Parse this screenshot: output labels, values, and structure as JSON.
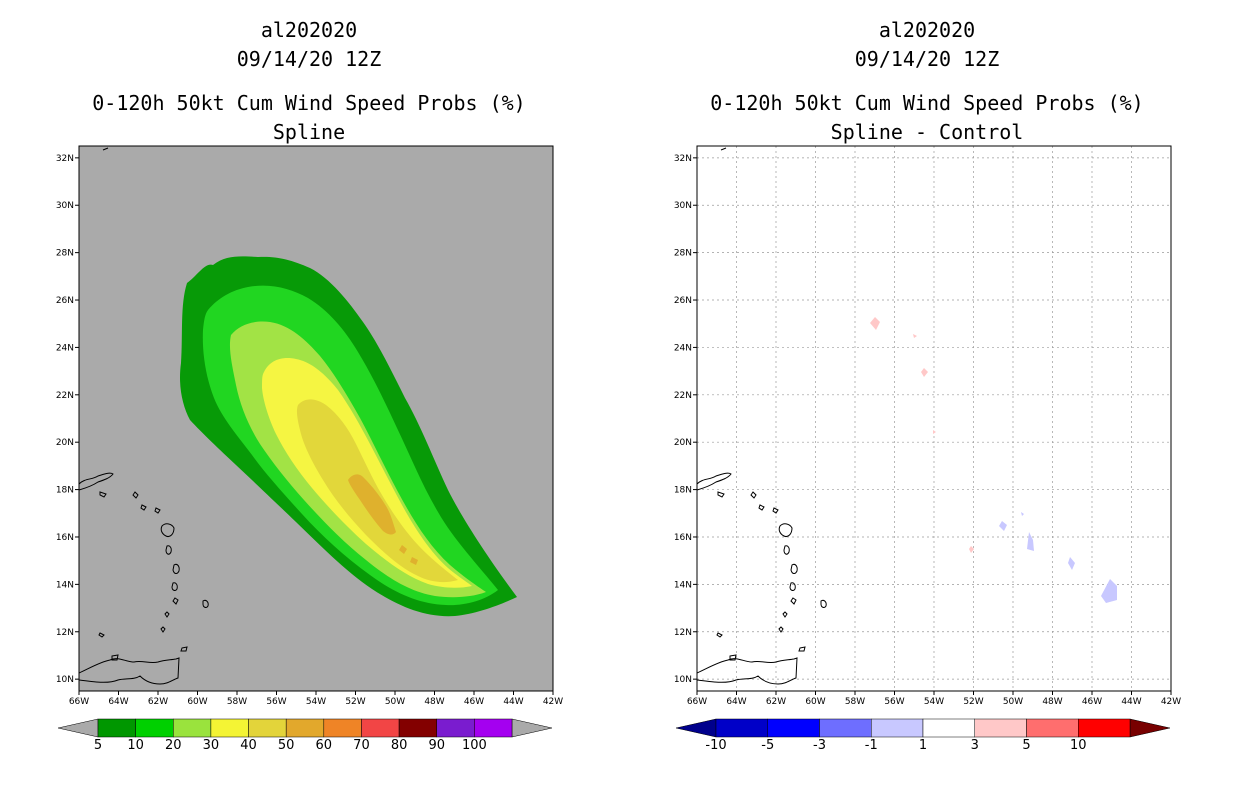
{
  "chart_data": [
    {
      "type": "contour-map",
      "title": [
        "al202020",
        "09/14/20 12Z",
        "0-120h 50kt Cum Wind Speed Probs (%)",
        "Spline"
      ],
      "background": "#aaaaaa",
      "x_ticks": [
        "66W",
        "64W",
        "62W",
        "60W",
        "58W",
        "56W",
        "54W",
        "52W",
        "50W",
        "48W",
        "46W",
        "44W",
        "42W"
      ],
      "y_ticks": [
        "10N",
        "12N",
        "14N",
        "16N",
        "18N",
        "20N",
        "22N",
        "24N",
        "26N",
        "28N",
        "30N",
        "32N"
      ],
      "xlim": [
        -66,
        -42
      ],
      "ylim": [
        9.5,
        32.5
      ],
      "contour_levels": [
        5,
        10,
        20,
        30,
        40,
        50
      ],
      "contour_colors": [
        "#079a07",
        "#21d621",
        "#a2e345",
        "#f5f542",
        "#e2d73a",
        "#dfb12d"
      ],
      "colorbar": {
        "labels": [
          "5",
          "10",
          "20",
          "30",
          "40",
          "50",
          "60",
          "70",
          "80",
          "90",
          "100"
        ],
        "colors": [
          "#009700",
          "#00d000",
          "#9ae33d",
          "#f4f434",
          "#e3d43a",
          "#e2a82c",
          "#ef8426",
          "#f24545",
          "#830000",
          "#7a1ccf",
          "#a400f0"
        ],
        "left_triangle": "#aaaaaa",
        "right_triangle": "#aaaaaa"
      }
    },
    {
      "type": "contour-map",
      "title": [
        "al202020",
        "09/14/20 12Z",
        "0-120h 50kt Cum Wind Speed Probs (%)",
        "Spline - Control"
      ],
      "background": "#ffffff",
      "x_ticks": [
        "66W",
        "64W",
        "62W",
        "60W",
        "58W",
        "56W",
        "54W",
        "52W",
        "50W",
        "48W",
        "46W",
        "44W",
        "42W"
      ],
      "y_ticks": [
        "10N",
        "12N",
        "14N",
        "16N",
        "18N",
        "20N",
        "22N",
        "24N",
        "26N",
        "28N",
        "30N",
        "32N"
      ],
      "xlim": [
        -66,
        -42
      ],
      "ylim": [
        9.5,
        32.5
      ],
      "grid": true,
      "colorbar": {
        "labels": [
          "-10",
          "-5",
          "-3",
          "-1",
          "1",
          "3",
          "5",
          "10"
        ],
        "colors": [
          "#0000c8",
          "#0000ff",
          "#6e6eff",
          "#c8c8ff",
          "#ffffff",
          "#ffc8c8",
          "#ff6e6e",
          "#ff0000"
        ],
        "left_triangle": "#00008c",
        "right_triangle": "#780000"
      }
    }
  ]
}
